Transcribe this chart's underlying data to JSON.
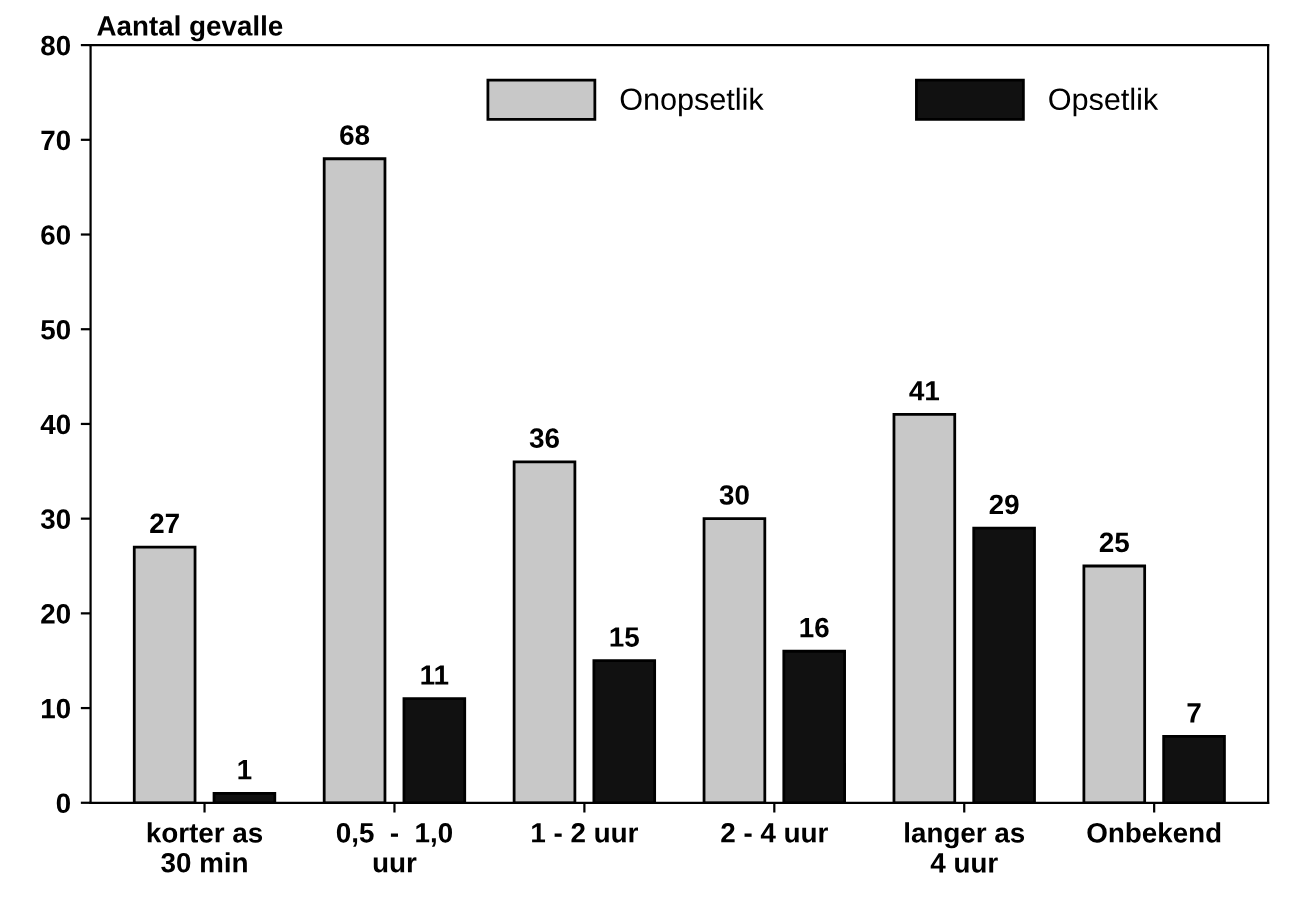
{
  "chart_data": {
    "type": "bar",
    "ylabel": "Aantal gevalle",
    "categories": [
      "korter as\n30 min",
      "0,5  -  1,0\nuur",
      "1 - 2 uur",
      "2 - 4 uur",
      "langer as\n4 uur",
      "Onbekend"
    ],
    "series": [
      {
        "name": "Onopsetlik",
        "color": "#c8c8c8",
        "values": [
          27,
          68,
          36,
          30,
          41,
          25
        ]
      },
      {
        "name": "Opsetlik",
        "color": "#111111",
        "values": [
          1,
          11,
          15,
          16,
          29,
          7
        ]
      }
    ],
    "ylim": [
      0,
      80
    ],
    "yticks": [
      0,
      10,
      20,
      30,
      40,
      50,
      60,
      70,
      80
    ],
    "data_labels": true,
    "grid": false,
    "legend": "top right"
  }
}
